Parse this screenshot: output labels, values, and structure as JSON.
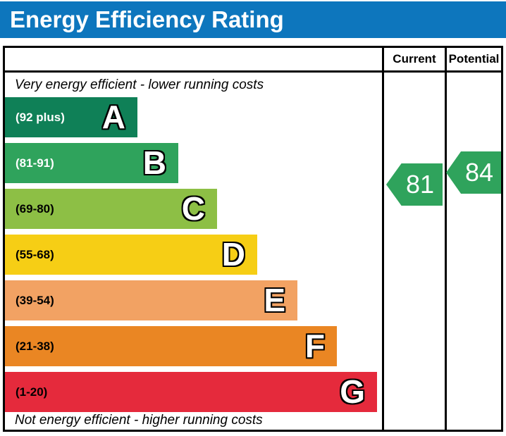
{
  "title": "Energy Efficiency Rating",
  "colors": {
    "title_bar": "#0d76bd",
    "border": "#000000",
    "arrow_green": "#2fa35c"
  },
  "columns": {
    "current": "Current",
    "potential": "Potential"
  },
  "captions": {
    "top": "Very energy efficient - lower running costs",
    "bottom": "Not energy efficient - higher running costs"
  },
  "bands": [
    {
      "letter": "A",
      "range": "(92 plus)",
      "color": "#0f8057",
      "label_color": "#ffffff"
    },
    {
      "letter": "B",
      "range": "(81-91)",
      "color": "#2fa35c",
      "label_color": "#ffffff"
    },
    {
      "letter": "C",
      "range": "(69-80)",
      "color": "#8dbf45",
      "label_color": "#000000"
    },
    {
      "letter": "D",
      "range": "(55-68)",
      "color": "#f6ce15",
      "label_color": "#000000"
    },
    {
      "letter": "E",
      "range": "(39-54)",
      "color": "#f2a263",
      "label_color": "#000000"
    },
    {
      "letter": "F",
      "range": "(21-38)",
      "color": "#ea8623",
      "label_color": "#000000"
    },
    {
      "letter": "G",
      "range": "(1-20)",
      "color": "#e52a3c",
      "label_color": "#000000"
    }
  ],
  "ratings": {
    "current": {
      "value": "81",
      "color": "#2fa35c"
    },
    "potential": {
      "value": "84",
      "color": "#2fa35c"
    }
  },
  "chart_data": {
    "type": "bar",
    "title": "Energy Efficiency Rating",
    "categories": [
      "A",
      "B",
      "C",
      "D",
      "E",
      "F",
      "G"
    ],
    "band_ranges": [
      "92 plus",
      "81-91",
      "69-80",
      "55-68",
      "39-54",
      "21-38",
      "1-20"
    ],
    "band_colors": [
      "#0f8057",
      "#2fa35c",
      "#8dbf45",
      "#f6ce15",
      "#f2a263",
      "#ea8623",
      "#e52a3c"
    ],
    "columns": [
      "Current",
      "Potential"
    ],
    "current": 81,
    "potential": 84,
    "current_band": "B",
    "potential_band": "B",
    "top_caption": "Very energy efficient - lower running costs",
    "bottom_caption": "Not energy efficient - higher running costs",
    "legend_position": "none",
    "grid": false
  }
}
